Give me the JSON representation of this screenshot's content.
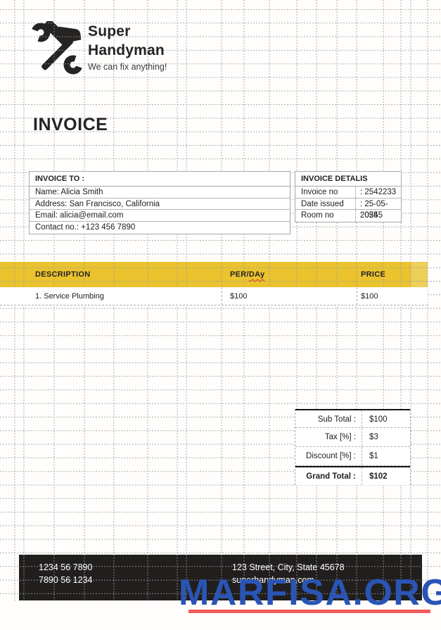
{
  "brand": {
    "name_line1": "Super",
    "name_line2": "Handyman",
    "tagline": "We can fix anything!",
    "logo_icon": "wrench-hammer-icon"
  },
  "title": "INVOICE",
  "invoice_to": {
    "heading": "INVOICE TO :",
    "lines": [
      "Name: Alicia Smith",
      "Address: San Francisco, California",
      "Email: alicia@email.com",
      "Contact no.: +123 456 7890"
    ]
  },
  "invoice_details": {
    "heading": "INVOICE DETALIS",
    "rows": [
      {
        "label": "Invoice no",
        "value": ": 2542233"
      },
      {
        "label": "Date issued",
        "value": ": 25-05-2025"
      },
      {
        "label": "Room no",
        "value": ": 0545"
      }
    ]
  },
  "items_table": {
    "col_description": "DESCRIPTION",
    "col_per_day_prefix": "PER/",
    "col_per_day_typo": "DAy",
    "col_price": "PRICE",
    "rows": [
      {
        "description": "1. Service Plumbing",
        "per_day": "$100",
        "price": "$100"
      }
    ]
  },
  "totals": {
    "rows": [
      {
        "label": "Sub Total :",
        "value": "$100"
      },
      {
        "label": "Tax [%] :",
        "value": "$3"
      },
      {
        "label": "Discount [%] :",
        "value": "$1"
      }
    ],
    "grand": {
      "label": "Grand Total :",
      "value": "$102"
    }
  },
  "footer": {
    "phone1": "1234 56 7890",
    "phone2": "7890 56 1234",
    "address": "123 Street, City, State 45678",
    "website": "superhandyman.com"
  },
  "watermark": {
    "text": "MARFISA.ORG"
  },
  "colors": {
    "accent_yellow": "#eac32e",
    "footer_dark": "#211e1e",
    "watermark_blue": "#2a55b5",
    "watermark_underline": "#f25c5c",
    "spellcheck_red": "#d93025"
  }
}
